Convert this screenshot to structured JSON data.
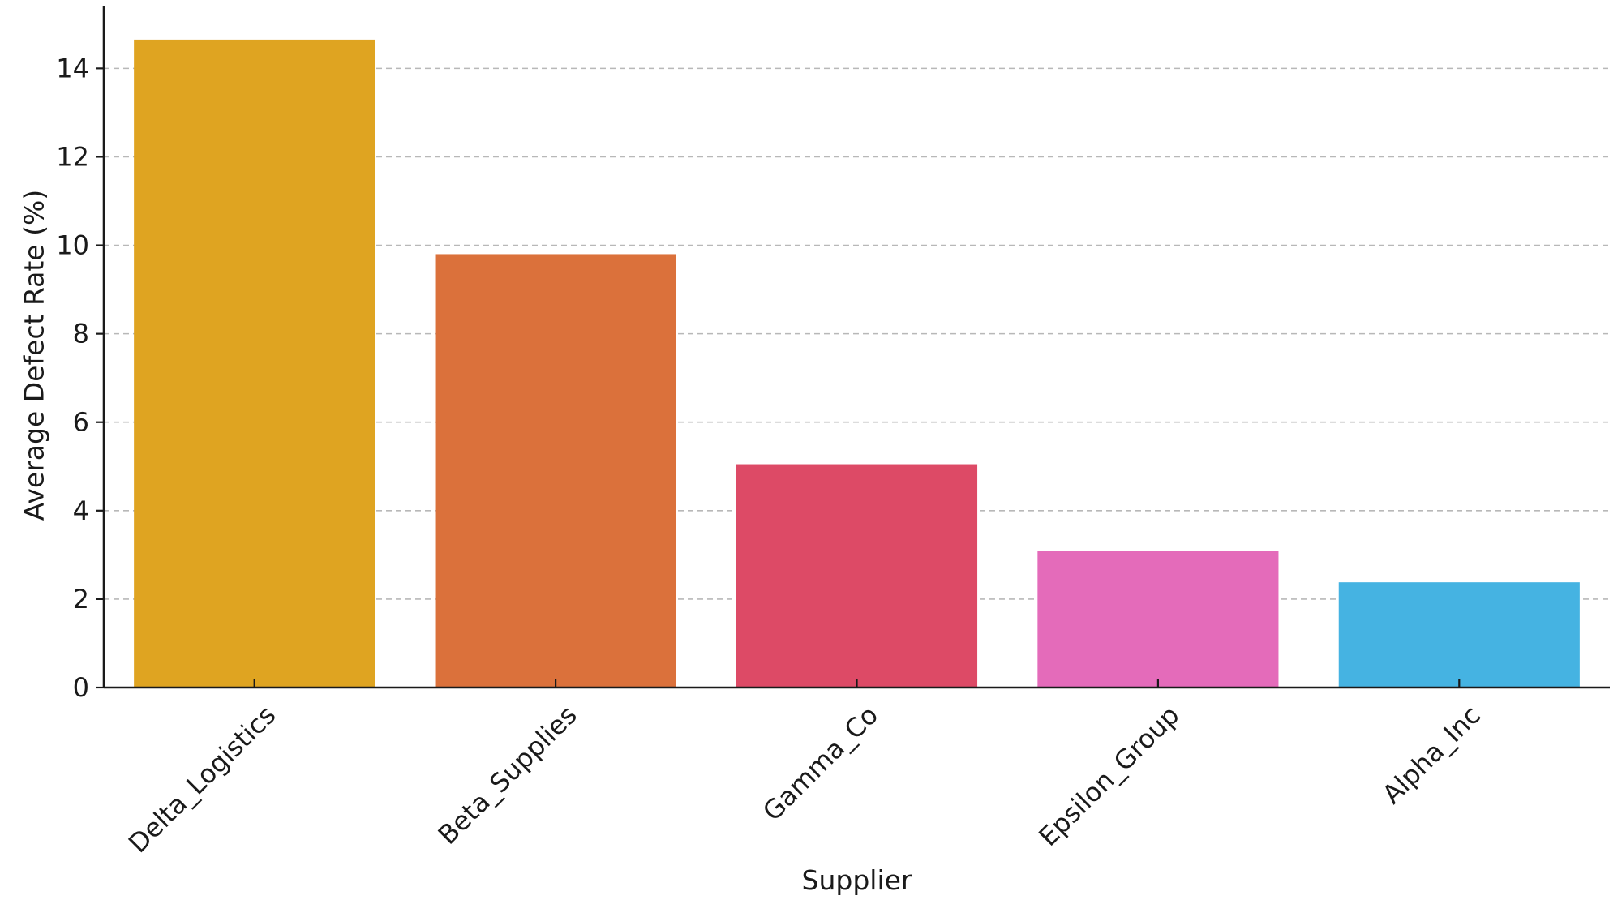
{
  "chart_data": {
    "type": "bar",
    "title": "",
    "xlabel": "Supplier",
    "ylabel": "Average Defect Rate (%)",
    "categories": [
      "Delta_Logistics",
      "Beta_Supplies",
      "Gamma_Co",
      "Epsilon_Group",
      "Alpha_Inc"
    ],
    "values": [
      14.65,
      9.8,
      5.05,
      3.08,
      2.38
    ],
    "colors": [
      "#DFA421",
      "#DB713B",
      "#DD4A66",
      "#E46BBA",
      "#45B3E2"
    ],
    "ylim": [
      0,
      15.4
    ],
    "yticks": [
      0,
      2,
      4,
      6,
      8,
      10,
      12,
      14
    ],
    "grid": {
      "y": true,
      "x": false,
      "style": "dashed"
    },
    "legend": "none",
    "xtick_rotation": 45
  }
}
